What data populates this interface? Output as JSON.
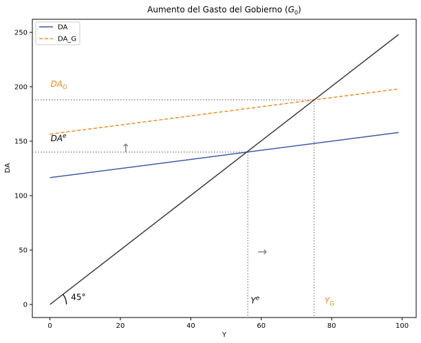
{
  "chart_data": {
    "type": "line",
    "title_main": "Aumento del Gasto del Gobierno (",
    "title_var": "G",
    "title_sub": "0",
    "title_close": ")",
    "xlabel": "Y",
    "ylabel": "DA",
    "xlim": [
      -5,
      104
    ],
    "ylim": [
      -12,
      262
    ],
    "x_ticks": [
      0,
      20,
      40,
      60,
      80,
      100
    ],
    "y_ticks": [
      0,
      50,
      100,
      150,
      200,
      250
    ],
    "grid": false,
    "legend_position": "top-left",
    "series": [
      {
        "name": "DA",
        "x": [
          0,
          99
        ],
        "y": [
          116.5,
          158
        ],
        "color": "#3b5ba5",
        "dash": "solid"
      },
      {
        "name": "DA_G",
        "x": [
          0,
          99
        ],
        "y": [
          156.5,
          198
        ],
        "color": "#f08a1c",
        "dash": "dashed"
      },
      {
        "name": "",
        "x": [
          0,
          99
        ],
        "y": [
          0,
          248
        ],
        "color": "#3a3a3a",
        "dash": "solid"
      }
    ],
    "equilibria": [
      {
        "x": 56.2,
        "y": 140
      },
      {
        "x": 75,
        "y": 188
      }
    ],
    "annotations": {
      "da_g_label": {
        "base": "DA",
        "sub": "G",
        "x": 0.2,
        "y": 200,
        "color": "#f08a1c"
      },
      "da_e_label": {
        "base": "DA",
        "sup": "e",
        "x": 0.2,
        "y": 150,
        "color": "#000000"
      },
      "y_e_label": {
        "base": "Y",
        "sup": "e",
        "x": 57,
        "y": 1,
        "color": "#000000"
      },
      "y_g_label": {
        "base": "Y",
        "sub": "G",
        "x": 78,
        "y": 1,
        "color": "#f08a1c"
      },
      "angle_label": {
        "text": "45°",
        "x": 6,
        "y": 4
      },
      "up_arrow": {
        "glyph": "↑",
        "x": 21.5,
        "y": 140
      },
      "right_arrow": {
        "glyph": "→",
        "x": 60.3,
        "y": 45
      }
    }
  }
}
